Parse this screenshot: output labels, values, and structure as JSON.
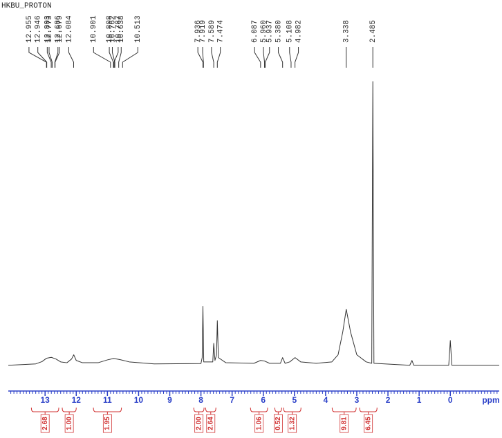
{
  "chart_data": {
    "type": "nmr",
    "title": "HKBU_PROTON",
    "xlabel": "ppm",
    "xlim": [
      14.18,
      -1.57
    ],
    "ylim": [
      0,
      100
    ],
    "xticks": [
      13,
      12,
      11,
      10,
      9,
      8,
      7,
      6,
      5,
      4,
      3,
      2,
      1,
      0
    ],
    "axis_color": "#2a3fc8",
    "series": [
      {
        "color": "#333333",
        "x": [
          14.18,
          13.3,
          13.1,
          12.95,
          12.8,
          12.65,
          12.5,
          12.3,
          12.15,
          12.08,
          12.0,
          11.8,
          11.3,
          11.0,
          10.8,
          10.6,
          10.3,
          9.5,
          8.0,
          7.96,
          7.936,
          7.91,
          7.62,
          7.589,
          7.55,
          7.5,
          7.474,
          7.44,
          7.2,
          6.3,
          6.087,
          5.96,
          5.8,
          5.45,
          5.38,
          5.3,
          5.15,
          4.98,
          4.8,
          4.3,
          3.8,
          3.6,
          3.45,
          3.338,
          3.2,
          3.0,
          2.7,
          2.52,
          2.485,
          2.45,
          1.3,
          1.23,
          1.17,
          0.05,
          0,
          -0.05,
          -1.57
        ],
        "values": [
          0.3,
          0.8,
          1.6,
          2.8,
          3.1,
          2.5,
          1.5,
          1.2,
          2.5,
          4,
          2,
          1.2,
          1.2,
          2.2,
          2.7,
          2.3,
          1.5,
          0.8,
          0.9,
          3,
          21,
          1.5,
          1.5,
          8,
          2,
          4,
          16,
          3,
          1.2,
          1,
          2,
          1.8,
          1,
          1,
          3,
          1,
          1.5,
          3,
          1.5,
          1,
          1.5,
          4,
          12,
          20,
          12,
          4,
          1.5,
          1,
          100,
          1,
          0.3,
          2,
          0.3,
          0.3,
          9,
          0.3,
          0.3
        ]
      }
    ],
    "peak_labels": {
      "values": [
        12.955,
        12.946,
        12.803,
        12.773,
        12.686,
        12.679,
        12.084,
        10.901,
        10.808,
        10.787,
        10.762,
        10.638,
        10.513,
        7.936,
        7.919,
        7.589,
        7.474,
        6.087,
        5.96,
        5.937,
        5.38,
        5.108,
        4.982,
        3.338,
        2.485
      ],
      "value_labels": [
        "12.955",
        "12.946",
        "12.803",
        "12.773",
        "12.686",
        "12.679",
        "12.084",
        "10.901",
        "10.808",
        "10.787",
        "10.762",
        "10.638",
        "10.513",
        "7.936",
        "7.919",
        "7.589",
        "7.474",
        "6.087",
        "5.960",
        "5.937",
        "5.380",
        "5.108",
        "4.982",
        "3.338",
        "2.485"
      ]
    },
    "integrals": {
      "color": "#d03030",
      "values": [
        2.68,
        1.0,
        1.95,
        2.0,
        2.64,
        1.06,
        0.52,
        1.32,
        9.81,
        6.45
      ],
      "value_labels": [
        "2.68",
        "1.00",
        "1.95",
        "2.00",
        "2.64",
        "1.06",
        "0.52",
        "1.32",
        "9.81",
        "6.45"
      ],
      "ranges": [
        [
          13.44,
          12.56
        ],
        [
          12.45,
          12.0
        ],
        [
          11.45,
          10.55
        ],
        [
          8.23,
          7.9
        ],
        [
          7.85,
          7.52
        ],
        [
          6.41,
          5.86
        ],
        [
          5.63,
          5.41
        ],
        [
          5.35,
          4.79
        ],
        [
          3.79,
          3.02
        ],
        [
          2.91,
          2.35
        ]
      ]
    }
  }
}
